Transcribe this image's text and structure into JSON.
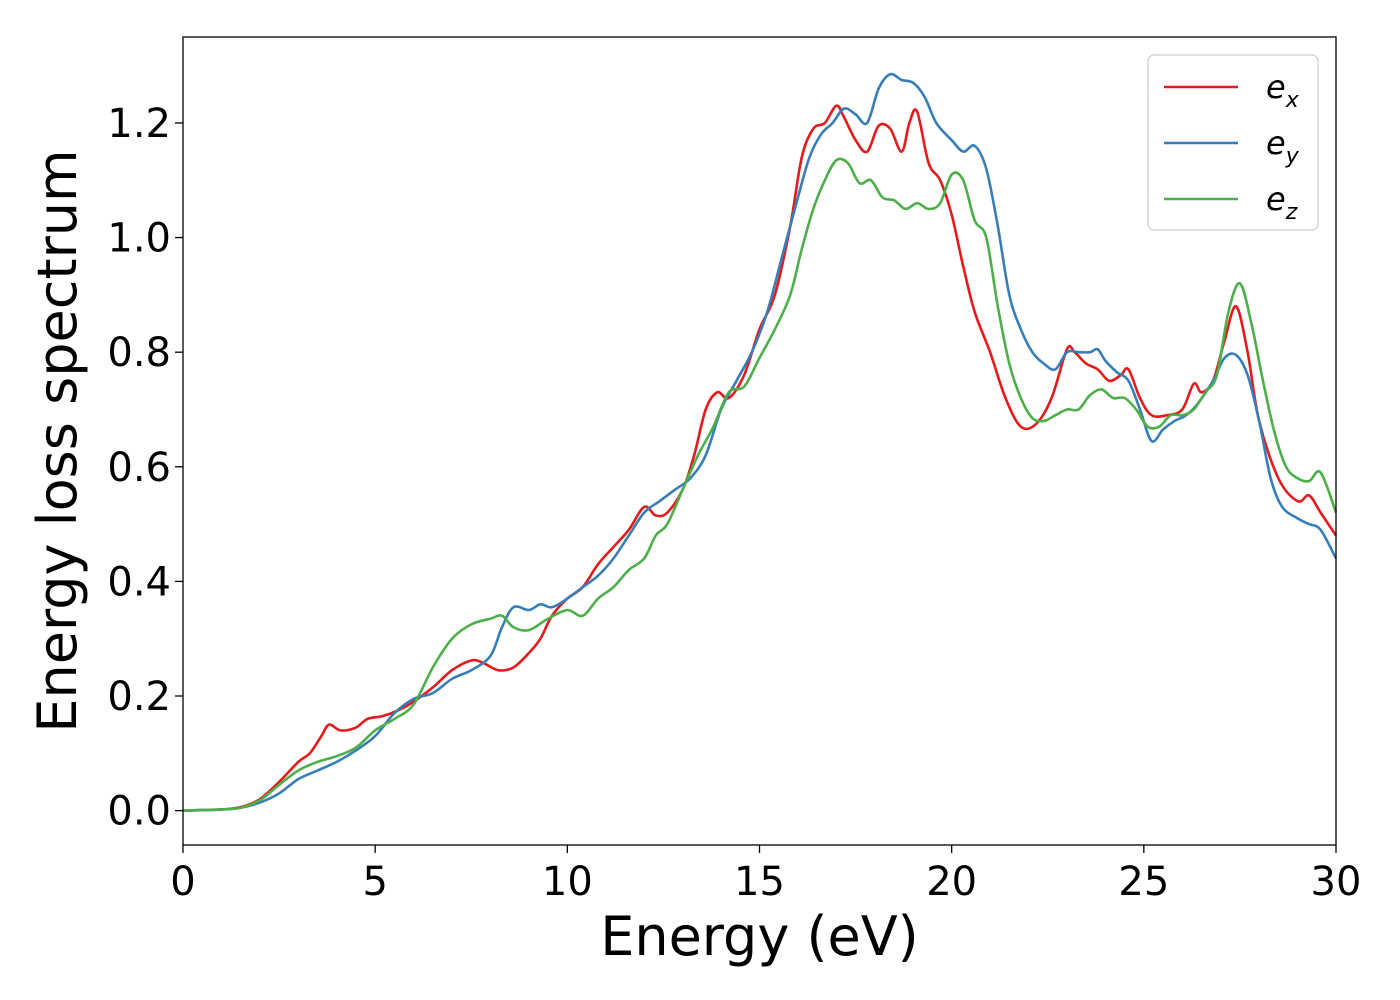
{
  "chart_data": {
    "type": "line",
    "title": "",
    "xlabel": "Energy (eV)",
    "ylabel": "Energy loss spectrum",
    "xlim": [
      0,
      30
    ],
    "ylim": [
      -0.06,
      1.35
    ],
    "xticks": [
      0,
      5,
      10,
      15,
      20,
      25,
      30
    ],
    "xtick_labels": [
      "0",
      "5",
      "10",
      "15",
      "20",
      "25",
      "30"
    ],
    "yticks": [
      0.0,
      0.2,
      0.4,
      0.6,
      0.8,
      1.0,
      1.2
    ],
    "ytick_labels": [
      "0.0",
      "0.2",
      "0.4",
      "0.6",
      "0.8",
      "1.0",
      "1.2"
    ],
    "grid": false,
    "legend": "top-right",
    "series": [
      {
        "name": "e",
        "subscript": "x",
        "color": "#e41a1c",
        "x": [
          0,
          1,
          1.5,
          2,
          2.5,
          3,
          3.3,
          3.6,
          3.8,
          4.1,
          4.5,
          4.8,
          5.2,
          5.6,
          6,
          6.5,
          7,
          7.5,
          7.8,
          8.2,
          8.6,
          9,
          9.3,
          9.6,
          10,
          10.4,
          10.8,
          11.2,
          11.6,
          12,
          12.3,
          12.6,
          13,
          13.3,
          13.6,
          13.9,
          14.2,
          14.6,
          15,
          15.4,
          15.8,
          16.1,
          16.4,
          16.7,
          17,
          17.2,
          17.5,
          17.8,
          18.1,
          18.4,
          18.7,
          18.9,
          19.1,
          19.4,
          19.7,
          20,
          20.3,
          20.6,
          21,
          21.4,
          21.8,
          22.2,
          22.6,
          23,
          23.2,
          23.5,
          23.8,
          24.1,
          24.4,
          24.6,
          24.9,
          25.2,
          25.6,
          26,
          26.3,
          26.5,
          26.8,
          27.1,
          27.4,
          27.7,
          28,
          28.5,
          29,
          29.3,
          29.6,
          30
        ],
        "y": [
          0,
          0.002,
          0.006,
          0.02,
          0.05,
          0.085,
          0.1,
          0.13,
          0.15,
          0.14,
          0.145,
          0.16,
          0.165,
          0.175,
          0.19,
          0.215,
          0.245,
          0.262,
          0.258,
          0.245,
          0.25,
          0.275,
          0.3,
          0.34,
          0.37,
          0.39,
          0.43,
          0.46,
          0.49,
          0.53,
          0.515,
          0.52,
          0.56,
          0.62,
          0.7,
          0.73,
          0.72,
          0.76,
          0.84,
          0.9,
          1.02,
          1.14,
          1.19,
          1.2,
          1.23,
          1.21,
          1.17,
          1.15,
          1.195,
          1.19,
          1.15,
          1.2,
          1.22,
          1.13,
          1.1,
          1.04,
          0.95,
          0.87,
          0.8,
          0.72,
          0.67,
          0.675,
          0.72,
          0.805,
          0.8,
          0.78,
          0.77,
          0.75,
          0.76,
          0.77,
          0.72,
          0.69,
          0.69,
          0.7,
          0.745,
          0.73,
          0.75,
          0.82,
          0.88,
          0.8,
          0.68,
          0.58,
          0.54,
          0.55,
          0.52,
          0.48
        ]
      },
      {
        "name": "e",
        "subscript": "y",
        "color": "#377eb8",
        "x": [
          0,
          1,
          1.5,
          2,
          2.5,
          3,
          3.5,
          4,
          4.5,
          5,
          5.5,
          6,
          6.5,
          7,
          7.5,
          8,
          8.3,
          8.6,
          9,
          9.3,
          9.6,
          10,
          10.4,
          10.8,
          11.2,
          11.6,
          12,
          12.4,
          12.8,
          13.2,
          13.6,
          14,
          14.4,
          14.8,
          15.2,
          15.6,
          16,
          16.3,
          16.6,
          16.9,
          17.2,
          17.5,
          17.8,
          18.1,
          18.4,
          18.7,
          19,
          19.3,
          19.6,
          20,
          20.3,
          20.6,
          20.9,
          21.2,
          21.5,
          21.8,
          22.1,
          22.4,
          22.7,
          23,
          23.3,
          23.6,
          23.8,
          24,
          24.3,
          24.6,
          24.9,
          25.2,
          25.5,
          25.8,
          26.1,
          26.4,
          26.8,
          27.1,
          27.4,
          27.7,
          28,
          28.3,
          28.6,
          29,
          29.3,
          29.6,
          30
        ],
        "y": [
          0,
          0.002,
          0.005,
          0.014,
          0.03,
          0.055,
          0.07,
          0.085,
          0.105,
          0.13,
          0.17,
          0.195,
          0.205,
          0.23,
          0.245,
          0.27,
          0.32,
          0.355,
          0.35,
          0.36,
          0.355,
          0.37,
          0.39,
          0.41,
          0.44,
          0.48,
          0.52,
          0.54,
          0.56,
          0.58,
          0.62,
          0.7,
          0.75,
          0.8,
          0.87,
          0.97,
          1.07,
          1.14,
          1.18,
          1.2,
          1.225,
          1.215,
          1.2,
          1.26,
          1.285,
          1.275,
          1.27,
          1.245,
          1.2,
          1.17,
          1.15,
          1.16,
          1.12,
          1.02,
          0.9,
          0.84,
          0.8,
          0.78,
          0.77,
          0.8,
          0.8,
          0.8,
          0.805,
          0.785,
          0.765,
          0.75,
          0.7,
          0.645,
          0.665,
          0.68,
          0.69,
          0.71,
          0.75,
          0.79,
          0.795,
          0.76,
          0.68,
          0.58,
          0.53,
          0.51,
          0.5,
          0.49,
          0.44
        ]
      },
      {
        "name": "e",
        "subscript": "z",
        "color": "#4daf4a",
        "x": [
          0,
          1,
          1.5,
          2,
          2.5,
          3,
          3.5,
          4,
          4.5,
          5,
          5.5,
          6,
          6.5,
          7,
          7.5,
          8,
          8.3,
          8.6,
          9,
          9.5,
          10,
          10.4,
          10.8,
          11.2,
          11.6,
          12,
          12.3,
          12.6,
          13,
          13.4,
          13.8,
          14.2,
          14.6,
          15,
          15.4,
          15.8,
          16.1,
          16.4,
          16.7,
          17,
          17.3,
          17.6,
          17.9,
          18.2,
          18.5,
          18.8,
          19.1,
          19.4,
          19.7,
          20,
          20.3,
          20.6,
          20.9,
          21.2,
          21.5,
          21.8,
          22.1,
          22.4,
          22.7,
          23,
          23.3,
          23.6,
          23.9,
          24.2,
          24.5,
          24.8,
          25.1,
          25.4,
          25.7,
          26,
          26.3,
          26.6,
          26.9,
          27.2,
          27.5,
          27.8,
          28.1,
          28.4,
          28.7,
          29,
          29.3,
          29.6,
          30
        ],
        "y": [
          0,
          0.002,
          0.005,
          0.018,
          0.045,
          0.07,
          0.085,
          0.095,
          0.11,
          0.14,
          0.16,
          0.185,
          0.25,
          0.3,
          0.325,
          0.335,
          0.34,
          0.32,
          0.315,
          0.335,
          0.35,
          0.34,
          0.37,
          0.39,
          0.42,
          0.44,
          0.48,
          0.5,
          0.56,
          0.62,
          0.67,
          0.73,
          0.74,
          0.79,
          0.84,
          0.9,
          0.98,
          1.05,
          1.1,
          1.135,
          1.13,
          1.095,
          1.1,
          1.07,
          1.065,
          1.05,
          1.06,
          1.05,
          1.06,
          1.11,
          1.1,
          1.03,
          1.0,
          0.88,
          0.78,
          0.72,
          0.685,
          0.68,
          0.69,
          0.7,
          0.7,
          0.725,
          0.735,
          0.72,
          0.72,
          0.7,
          0.67,
          0.67,
          0.69,
          0.69,
          0.7,
          0.73,
          0.76,
          0.87,
          0.92,
          0.85,
          0.75,
          0.66,
          0.6,
          0.58,
          0.575,
          0.59,
          0.52
        ]
      }
    ]
  }
}
